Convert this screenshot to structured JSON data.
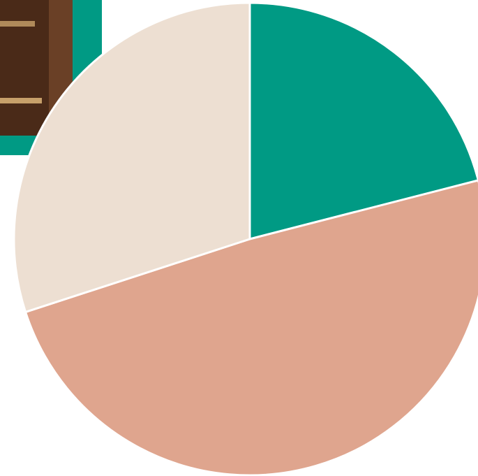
{
  "chart_data": {
    "type": "pie",
    "values": [
      21,
      49,
      30
    ],
    "colors": [
      "#009a84",
      "#dfa58e",
      "#eddfd2"
    ]
  }
}
